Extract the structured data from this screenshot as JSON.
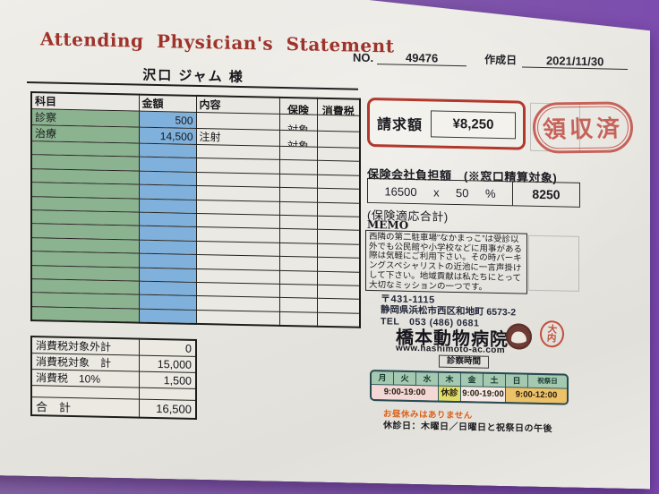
{
  "colors": {
    "background_purple": "#7e55a9",
    "title_red": "#9e332b",
    "billing_box_red": "#b2382c",
    "stamp_red": "#c4574e",
    "subject_green": "#8bb390",
    "amount_blue": "#7fb1dc"
  },
  "header": {
    "title": "Attending Physician's Statement",
    "no_label": "NO.",
    "no_value": "49476",
    "date_label": "作成日",
    "date_value": "2021/11/30",
    "patient_name": "沢口 ジャム 様"
  },
  "charges": {
    "headers": [
      "科目",
      "金額",
      "内容",
      "保険",
      "消費税"
    ],
    "rows": [
      {
        "subject": "診察",
        "amount": "500",
        "detail": "",
        "insurance": "対象",
        "tax": ""
      },
      {
        "subject": "治療",
        "amount": "14,500",
        "detail": "注射",
        "insurance": "対象",
        "tax": ""
      }
    ],
    "empty_row_count": 13
  },
  "summary": {
    "rows": [
      {
        "label": "消費税対象外計",
        "value": "0"
      },
      {
        "label": "消費税対象　計",
        "value": "15,000"
      },
      {
        "label": "消費税　10%",
        "value": "1,500"
      },
      {
        "label": "",
        "value": ""
      },
      {
        "label": "合　計",
        "value": "16,500"
      }
    ]
  },
  "billing": {
    "label": "請求額",
    "amount": "¥8,250",
    "received_stamp": "領収済"
  },
  "insurance": {
    "heading": "保険会社負担額　(※窓口精算対象)",
    "base": "16500",
    "times": "x",
    "rate": "50",
    "percent": "%",
    "result": "8250",
    "note": "(保険適応合計)"
  },
  "memo": {
    "label": "MEMO",
    "text": "西隣の第二駐車場“なかまっこ”は受診以外でも公民館や小学校などに用事がある際は気軽にご利用下さい。その時パーキングスペシャリストの近池に一言声掛けして下さい。地域貢献は私たちにとって大切なミッションの一つです。"
  },
  "clinic": {
    "postal": "〒431-1115",
    "address": "静岡県浜松市西区和地町 6573-2",
    "tel": "TEL　053 (486) 0681",
    "name": "橋本動物病院",
    "website": "www.hashimoto-ac.com",
    "staff_stamp_top": "大",
    "staff_stamp_bottom": "内"
  },
  "schedule": {
    "title": "診察時間",
    "days": [
      "月",
      "火",
      "水",
      "木",
      "金",
      "土",
      "日",
      "祝祭日"
    ],
    "hours": [
      {
        "label": "9:00-19:00",
        "span": 3,
        "color": "#f3d8d6"
      },
      {
        "label": "休診",
        "span": 1,
        "color": "#dfdc68"
      },
      {
        "label": "9:00-19:00",
        "span": 2,
        "color": "#f6e8e4"
      },
      {
        "label": "9:00-12:00",
        "span": 2,
        "color": "#edc168"
      }
    ],
    "note1": "お昼休みはありません",
    "note2": "休診日：木曜日／日曜日と祝祭日の午後"
  }
}
